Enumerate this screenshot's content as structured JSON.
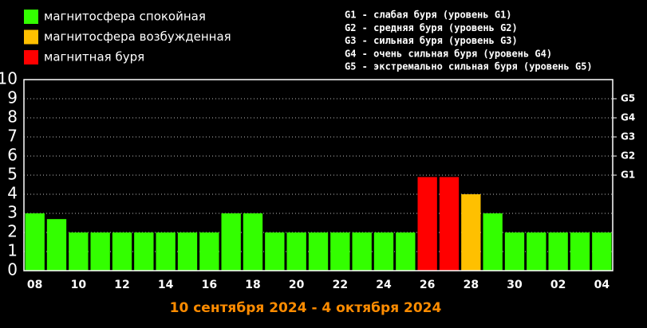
{
  "chart_data": {
    "type": "bar",
    "title": "10 сентября 2024 - 4 октября 2024",
    "legend_items": [
      {
        "name": "магнитосфера спокойная",
        "color": "#33ff00"
      },
      {
        "name": "магнитосфера возбужденная",
        "color": "#ffc000"
      },
      {
        "name": "магнитная буря",
        "color": "#ff0000"
      }
    ],
    "annotations": [
      "G1 - слабая буря (уровень G1)",
      "G2 - средняя буря (уровень G2)",
      "G3 - сильная буря (уровень G3)",
      "G4 - очень сильная буря (уровень G4)",
      "G5 - экстремально сильная буря (уровень G5)"
    ],
    "categories": [
      "08",
      null,
      "10",
      null,
      "12",
      null,
      "14",
      null,
      "16",
      null,
      "18",
      null,
      "20",
      null,
      "22",
      null,
      "24",
      null,
      "26",
      null,
      "28",
      null,
      "30",
      null,
      "02",
      null,
      "04"
    ],
    "values": [
      3,
      2.7,
      2,
      2,
      2,
      2,
      2,
      2,
      2,
      3,
      3,
      2,
      2,
      2,
      2,
      2,
      2,
      2,
      4.9,
      4.9,
      4,
      3,
      2,
      2,
      2,
      2,
      2
    ],
    "colors": [
      "#33ff00",
      "#33ff00",
      "#33ff00",
      "#33ff00",
      "#33ff00",
      "#33ff00",
      "#33ff00",
      "#33ff00",
      "#33ff00",
      "#33ff00",
      "#33ff00",
      "#33ff00",
      "#33ff00",
      "#33ff00",
      "#33ff00",
      "#33ff00",
      "#33ff00",
      "#33ff00",
      "#ff0000",
      "#ff0000",
      "#ffc000",
      "#33ff00",
      "#33ff00",
      "#33ff00",
      "#33ff00",
      "#33ff00",
      "#33ff00"
    ],
    "ylim": [
      0,
      10
    ],
    "yticks": [
      0,
      1,
      2,
      3,
      4,
      5,
      6,
      7,
      8,
      9,
      10
    ],
    "y2lim": [
      0,
      10
    ],
    "y2ticks": [
      {
        "value": 5,
        "label": "G1"
      },
      {
        "value": 6,
        "label": "G2"
      },
      {
        "value": 7,
        "label": "G3"
      },
      {
        "value": 8,
        "label": "G4"
      },
      {
        "value": 9,
        "label": "G5"
      }
    ],
    "grid": true
  }
}
